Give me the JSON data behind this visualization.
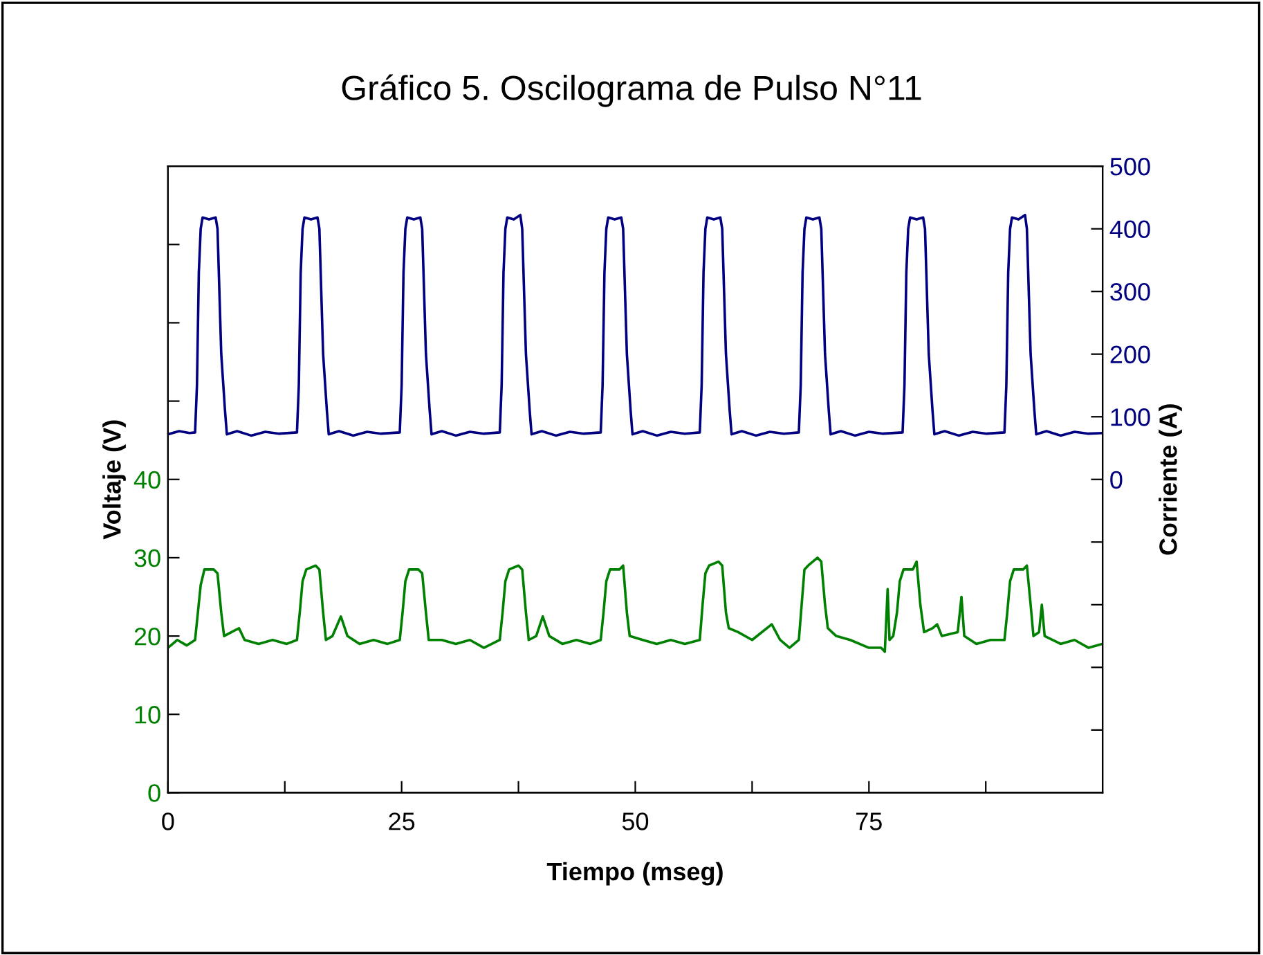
{
  "chart_data": {
    "type": "line",
    "title": "Gráfico 5. Oscilograma de Pulso N°11",
    "xlabel": "Tiempo (mseg)",
    "ylabel": "Voltaje (V)",
    "y2label": "Corriente (A)",
    "xlim": [
      0,
      100
    ],
    "xticks": [
      0,
      {
        "value": 12.5,
        "label": null
      },
      25,
      {
        "value": 37.5,
        "label": null
      },
      50,
      {
        "value": 62.5,
        "label": null
      },
      75,
      {
        "value": 87.5,
        "label": null
      }
    ],
    "ylim": [
      0,
      80
    ],
    "yticks": [
      0,
      10,
      20,
      30,
      40,
      {
        "value": 50,
        "label": null
      },
      {
        "value": 60,
        "label": null
      },
      {
        "value": 70,
        "label": null
      }
    ],
    "y2lim": [
      -500,
      500
    ],
    "y2ticks": [
      {
        "value": -400,
        "label": null
      },
      {
        "value": -300,
        "label": null
      },
      {
        "value": -200,
        "label": null
      },
      {
        "value": -100,
        "label": null
      },
      0,
      100,
      200,
      300,
      400,
      500
    ],
    "grid": false,
    "legend": false,
    "marker": "none",
    "line_style": "solid",
    "series": [
      {
        "color": "#000080",
        "axis": "y2",
        "x": [
          0,
          1.2,
          2.3,
          2.9,
          3.1,
          3.3,
          3.5,
          3.7,
          4.4,
          5.1,
          5.3,
          5.7,
          6.1,
          6.3,
          7.4,
          8.9,
          10.4,
          11.9,
          13.8,
          14,
          14.2,
          14.4,
          14.6,
          15.3,
          16,
          16.2,
          16.6,
          17,
          17.2,
          18.3,
          19.8,
          21.3,
          22.8,
          24.8,
          25,
          25.2,
          25.4,
          25.6,
          26.3,
          27,
          27.2,
          27.6,
          28,
          28.2,
          29.3,
          30.8,
          32.3,
          33.8,
          35.5,
          35.7,
          35.9,
          36.1,
          36.3,
          37,
          37.7,
          37.9,
          38.3,
          38.7,
          38.9,
          40,
          41.5,
          43,
          44.5,
          46.3,
          46.5,
          46.7,
          46.9,
          47.1,
          47.8,
          48.5,
          48.7,
          49.1,
          49.5,
          49.7,
          50.8,
          52.3,
          53.8,
          55.3,
          56.9,
          57.1,
          57.3,
          57.5,
          57.7,
          58.4,
          59.1,
          59.3,
          59.7,
          60.1,
          60.3,
          61.4,
          62.9,
          64.4,
          65.9,
          67.5,
          67.7,
          67.9,
          68.1,
          68.3,
          69,
          69.7,
          69.9,
          70.3,
          70.7,
          70.9,
          72,
          73.5,
          75,
          76.5,
          78.6,
          78.8,
          79,
          79.2,
          79.4,
          80.1,
          80.8,
          81,
          81.4,
          81.8,
          82,
          83.1,
          84.6,
          86.1,
          87.6,
          89.5,
          89.7,
          89.9,
          90.1,
          90.3,
          91,
          91.7,
          91.9,
          92.3,
          92.7,
          92.9,
          94,
          95.5,
          97,
          98.5,
          100
        ],
        "values": [
          72,
          77,
          74,
          75,
          150,
          330,
          400,
          418,
          415,
          418,
          400,
          200,
          110,
          72,
          77,
          70,
          76,
          73,
          75,
          150,
          330,
          400,
          418,
          415,
          418,
          400,
          200,
          110,
          72,
          77,
          70,
          76,
          73,
          75,
          150,
          330,
          400,
          418,
          415,
          418,
          400,
          200,
          110,
          72,
          77,
          70,
          76,
          73,
          75,
          150,
          330,
          400,
          418,
          415,
          422,
          400,
          200,
          110,
          72,
          77,
          70,
          76,
          73,
          75,
          150,
          330,
          400,
          418,
          415,
          418,
          400,
          200,
          110,
          72,
          77,
          70,
          76,
          73,
          75,
          150,
          330,
          400,
          418,
          415,
          418,
          400,
          200,
          110,
          72,
          77,
          70,
          76,
          73,
          75,
          150,
          330,
          400,
          418,
          415,
          418,
          400,
          200,
          110,
          72,
          77,
          70,
          76,
          73,
          75,
          150,
          330,
          400,
          418,
          415,
          418,
          400,
          200,
          110,
          72,
          77,
          70,
          76,
          73,
          75,
          150,
          330,
          400,
          418,
          415,
          422,
          400,
          200,
          110,
          72,
          77,
          70,
          76,
          73,
          74
        ]
      },
      {
        "color": "#008000",
        "x": [
          0,
          1,
          2,
          2.9,
          3.2,
          3.5,
          3.9,
          4.9,
          5.3,
          5.7,
          6,
          6.8,
          7.6,
          8.2,
          9.7,
          11.2,
          12.7,
          13.8,
          14.1,
          14.4,
          14.8,
          15.8,
          16.2,
          16.6,
          16.9,
          17.6,
          18.5,
          19.2,
          20.5,
          22,
          23.5,
          24.8,
          25.1,
          25.4,
          25.8,
          26.8,
          27.2,
          27.6,
          27.9,
          29.3,
          30.8,
          32.3,
          33.8,
          35.5,
          35.8,
          36.1,
          36.5,
          37.5,
          37.9,
          38.3,
          38.6,
          39.4,
          40.1,
          40.8,
          42.2,
          43.7,
          45.2,
          46.3,
          46.6,
          46.9,
          47.3,
          48.3,
          48.7,
          49.1,
          49.4,
          50.8,
          52.3,
          53.8,
          55.3,
          56.9,
          57.2,
          57.5,
          57.9,
          58.9,
          59.3,
          59.7,
          60,
          61,
          62.5,
          64.6,
          65.5,
          66.5,
          67.5,
          67.8,
          68.1,
          68.5,
          69.5,
          69.9,
          70.3,
          70.6,
          71.5,
          73,
          75,
          76.3,
          76.7,
          77,
          77.2,
          77.6,
          78,
          78.3,
          78.7,
          79.7,
          80.1,
          80.5,
          80.9,
          81.8,
          82.3,
          82.8,
          84.5,
          84.9,
          85.2,
          86.5,
          88,
          89.5,
          89.8,
          90.1,
          90.5,
          91.5,
          91.9,
          92.3,
          92.6,
          93.2,
          93.5,
          93.8,
          95.5,
          97,
          98.5,
          100
        ],
        "values": [
          18.5,
          19.5,
          18.8,
          19.5,
          23,
          26.5,
          28.5,
          28.5,
          28,
          23,
          20,
          20.5,
          21,
          19.5,
          19,
          19.5,
          19,
          19.5,
          23,
          27,
          28.5,
          29,
          28.5,
          23,
          19.5,
          20,
          22.5,
          20,
          19,
          19.5,
          19,
          19.5,
          23,
          27,
          28.5,
          28.5,
          28,
          23,
          19.5,
          19.5,
          19,
          19.5,
          18.5,
          19.5,
          23,
          27,
          28.5,
          29,
          28.5,
          23,
          19.5,
          20,
          22.5,
          20,
          19,
          19.5,
          19,
          19.5,
          23,
          27,
          28.5,
          28.5,
          29,
          23,
          20,
          19.5,
          19,
          19.5,
          19,
          19.5,
          24,
          28,
          29,
          29.5,
          29,
          23,
          21,
          20.5,
          19.5,
          21.5,
          19.5,
          18.5,
          19.5,
          24,
          28.5,
          29,
          30,
          29.5,
          24,
          21,
          20,
          19.5,
          18.5,
          18.5,
          18,
          26,
          19.5,
          20,
          23,
          27,
          28.5,
          28.5,
          29.5,
          24,
          20.5,
          21,
          21.5,
          20,
          20.5,
          25,
          20,
          19,
          19.5,
          19.5,
          23,
          27,
          28.5,
          28.5,
          29,
          24,
          20,
          20.5,
          24,
          20,
          19,
          19.5,
          18.5,
          19
        ]
      }
    ]
  }
}
